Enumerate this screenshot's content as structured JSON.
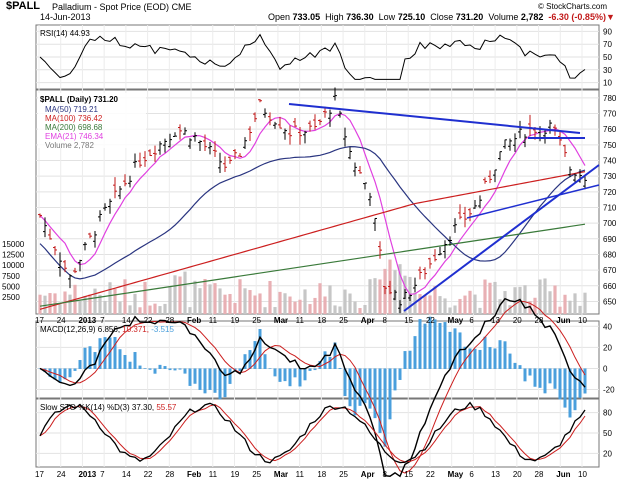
{
  "header": {
    "symbol": "$PALL",
    "name": "Palladium - Spot Price (EOD)",
    "exchange": "CME",
    "date": "14-Jun-2013",
    "ohlc": {
      "open_label": "Open",
      "open": "733.05",
      "high_label": "High",
      "high": "736.30",
      "low_label": "Low",
      "low": "725.10",
      "close_label": "Close",
      "close": "731.20",
      "volume_label": "Volume",
      "volume": "2,782",
      "change": "-6.30 (-0.85%)"
    },
    "watermark": "© StockCharts.com"
  },
  "legend": {
    "rsi": "RSI(14) 44.93",
    "price": "$PALL (Daily) 731.20",
    "ma50": "MA(50) 719.21",
    "ma100": "MA(100) 736.42",
    "ma200": "MA(200) 698.68",
    "ema21": "EMA(21) 746.34",
    "volume": "Volume 2,782",
    "macd_prefix": "MACD(12,26,9) 6.856,",
    "macd_sig": "10.371,",
    "macd_hist": "-3.515",
    "sto_prefix": "Slow STO %K(14) %D(3) 37.30,",
    "sto_d": "55.57"
  },
  "colors": {
    "ma50": "#2a3580",
    "ma100": "#cc1f1f",
    "ma200": "#3a7a3a",
    "ema21": "#e040e0",
    "trend": "#1f2fd0",
    "up": "#000000",
    "down": "#c21a1a",
    "volume": "#e8b0b4",
    "volume_gray": "#c6c6c6",
    "hist": "#4a9fdc"
  },
  "chart_data": {
    "type": "candlestick",
    "x_tick_labels": [
      "17",
      "24",
      "2013",
      "7",
      "14",
      "22",
      "28",
      "Feb",
      "11",
      "19",
      "25",
      "Mar",
      "11",
      "18",
      "25",
      "Apr",
      "8",
      "15",
      "22",
      "May",
      "6",
      "13",
      "20",
      "28",
      "Jun",
      "10"
    ],
    "panels": [
      {
        "name": "RSI",
        "y_ticks": [
          90,
          70,
          50,
          30,
          10
        ],
        "ylim": [
          0,
          100
        ],
        "rsi_now": 44.93
      },
      {
        "name": "Price",
        "y_ticks": [
          780,
          770,
          760,
          750,
          740,
          730,
          720,
          710,
          700,
          690,
          680,
          670,
          660,
          650
        ],
        "ylim": [
          642,
          785
        ],
        "volume_ticks": [
          "15000",
          "12500",
          "10000",
          "7500",
          "5000",
          "2500"
        ],
        "last": {
          "open": 733.05,
          "high": 736.3,
          "low": 725.1,
          "close": 731.2,
          "volume": 2782
        },
        "ma50": 719.21,
        "ma100": 736.42,
        "ma200": 698.68,
        "ema21": 746.34
      },
      {
        "name": "MACD",
        "y_ticks": [
          40,
          20,
          0,
          -20
        ],
        "ylim": [
          -28,
          45
        ],
        "macd": 6.856,
        "signal": 10.371,
        "histogram": -3.515
      },
      {
        "name": "Slow STO",
        "y_ticks": [
          80,
          50,
          20
        ],
        "ylim": [
          0,
          100
        ],
        "k": 37.3,
        "d": 55.57
      }
    ]
  }
}
